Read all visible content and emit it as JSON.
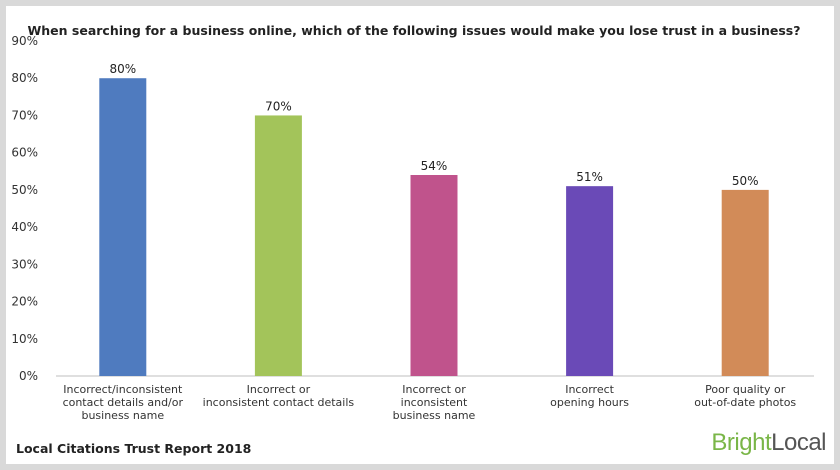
{
  "chart_data": {
    "type": "bar",
    "title": "When searching for a business online, which of the following issues would make you lose trust in a business?",
    "categories": [
      [
        "Incorrect/inconsistent",
        "contact details and/or",
        "business name"
      ],
      [
        "Incorrect or",
        "inconsistent contact details"
      ],
      [
        "Incorrect or",
        "inconsistent",
        "business name"
      ],
      [
        "Incorrect",
        "opening hours"
      ],
      [
        "Poor quality or",
        "out-of-date photos"
      ]
    ],
    "values": [
      80,
      70,
      54,
      51,
      50
    ],
    "data_labels": [
      "80%",
      "70%",
      "54%",
      "51%",
      "50%"
    ],
    "colors": [
      "#4f7bbf",
      "#a3c45a",
      "#c0538c",
      "#6a4ab7",
      "#d28b58"
    ],
    "ylim": [
      0,
      90
    ],
    "yticks": [
      0,
      10,
      20,
      30,
      40,
      50,
      60,
      70,
      80,
      90
    ],
    "ytick_labels": [
      "0%",
      "10%",
      "20%",
      "30%",
      "40%",
      "50%",
      "60%",
      "70%",
      "80%",
      "90%"
    ],
    "xlabel": "",
    "ylabel": "",
    "grid": false,
    "legend": "none"
  },
  "footer": {
    "source": "Local Citations Trust Report 2018"
  },
  "brand": {
    "part1": "Bright",
    "part2": "Local"
  }
}
